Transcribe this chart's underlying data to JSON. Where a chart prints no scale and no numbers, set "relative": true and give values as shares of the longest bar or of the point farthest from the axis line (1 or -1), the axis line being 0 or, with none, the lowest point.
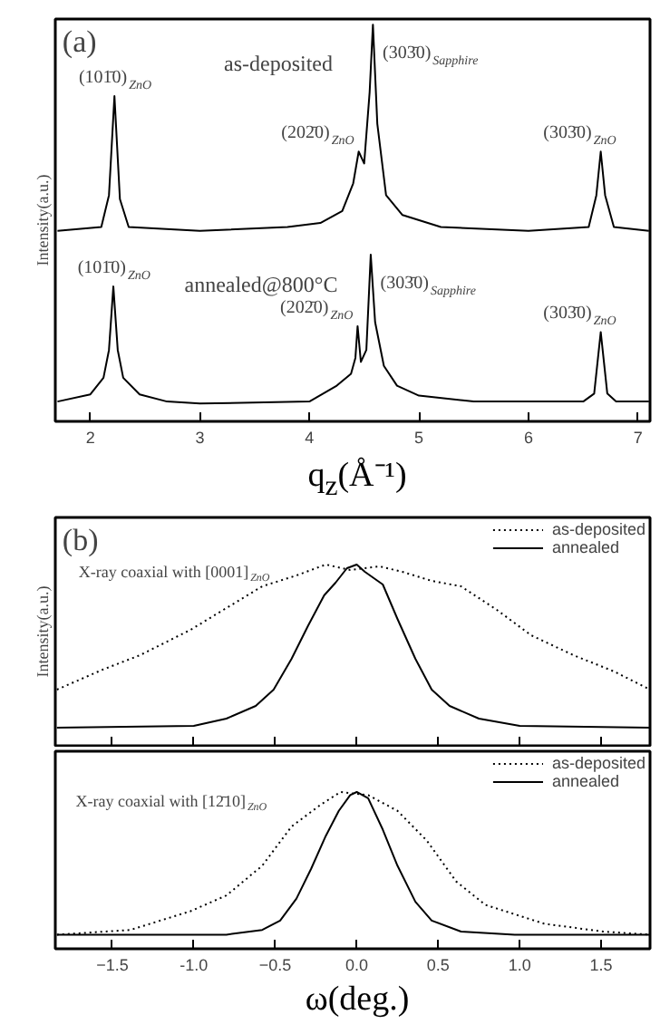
{
  "chart_data": [
    {
      "type": "line",
      "title": "(a)",
      "xlabel": "q$_{z}$(Å⁻¹)",
      "ylabel": "Intensity(a.u.)",
      "relative": true,
      "xlim": [
        1.68,
        7.11
      ],
      "xticks": [
        2,
        3,
        4,
        5,
        6,
        7
      ],
      "grid": false,
      "legend": false,
      "marker": "none",
      "line_style": "solid",
      "series": [
        {
          "name": "as-deposited",
          "color": "#000000",
          "x": [
            1.7,
            2.1,
            2.17,
            2.22,
            2.27,
            2.35,
            3.0,
            3.8,
            4.1,
            4.3,
            4.4,
            4.45,
            4.5,
            4.55,
            4.58,
            4.62,
            4.7,
            4.85,
            5.2,
            6.0,
            6.55,
            6.62,
            6.66,
            6.7,
            6.78,
            7.1
          ],
          "values": [
            0.48,
            0.49,
            0.57,
            0.82,
            0.56,
            0.49,
            0.48,
            0.49,
            0.5,
            0.53,
            0.6,
            0.68,
            0.65,
            0.83,
            1.0,
            0.75,
            0.57,
            0.52,
            0.49,
            0.48,
            0.49,
            0.57,
            0.68,
            0.57,
            0.49,
            0.48
          ]
        },
        {
          "name": "annealed@800°C",
          "color": "#000000",
          "x": [
            1.7,
            2.0,
            2.12,
            2.17,
            2.21,
            2.25,
            2.3,
            2.45,
            2.7,
            3.0,
            4.0,
            4.25,
            4.38,
            4.42,
            4.44,
            4.47,
            4.52,
            4.56,
            4.6,
            4.68,
            4.8,
            5.0,
            5.5,
            6.5,
            6.6,
            6.66,
            6.72,
            6.8,
            7.1
          ],
          "values": [
            0.05,
            0.068,
            0.11,
            0.18,
            0.34,
            0.18,
            0.11,
            0.068,
            0.05,
            0.045,
            0.05,
            0.09,
            0.12,
            0.16,
            0.24,
            0.15,
            0.18,
            0.42,
            0.25,
            0.14,
            0.09,
            0.065,
            0.05,
            0.05,
            0.07,
            0.225,
            0.07,
            0.05,
            0.05
          ]
        }
      ],
      "annotations": [
        {
          "text": "(101̄0)$_{ZnO}$",
          "x": 2.22,
          "y": 0.82
        },
        {
          "text": "(202̄0)$_{ZnO}$",
          "x": 4.45,
          "y": 0.68
        },
        {
          "text": "(303̄0)$_{Sapphire}$",
          "x": 4.58,
          "y": 1.0
        },
        {
          "text": "(303̄0)$_{ZnO}$",
          "x": 6.66,
          "y": 0.68
        },
        {
          "text": "(101̄0)$_{ZnO}$",
          "x": 2.21,
          "y": 0.34
        },
        {
          "text": "(202̄0)$_{ZnO}$",
          "x": 4.44,
          "y": 0.24
        },
        {
          "text": "(303̄0)$_{Sapphire}$",
          "x": 4.56,
          "y": 0.42
        },
        {
          "text": "(303̄0)$_{ZnO}$",
          "x": 6.66,
          "y": 0.225
        }
      ]
    },
    {
      "type": "line",
      "title": "(b)",
      "ylabel": "Intensity(a.u.)",
      "relative": true,
      "xlim": [
        -1.85,
        1.8
      ],
      "xticks": [
        -1.5,
        -1,
        -0.5,
        0,
        0.5,
        1,
        1.5
      ],
      "tick_labels": false,
      "grid": false,
      "legend": "top right",
      "marker": "none",
      "series": [
        {
          "name": "as-deposited",
          "color": "#000000",
          "line_style": "dotted",
          "x": [
            -1.84,
            -1.56,
            -1.33,
            -1.02,
            -0.8,
            -0.58,
            -0.37,
            -0.19,
            -0.04,
            0.14,
            0.28,
            0.46,
            0.64,
            0.86,
            1.07,
            1.33,
            1.58,
            1.8
          ],
          "values": [
            0.31,
            0.42,
            0.5,
            0.64,
            0.76,
            0.88,
            0.94,
            1.0,
            0.97,
            0.99,
            0.96,
            0.91,
            0.88,
            0.75,
            0.61,
            0.5,
            0.41,
            0.31
          ]
        },
        {
          "name": "annealed",
          "color": "#000000",
          "line_style": "solid",
          "x": [
            -1.84,
            -1.0,
            -0.8,
            -0.62,
            -0.51,
            -0.4,
            -0.3,
            -0.2,
            -0.13,
            -0.06,
            0.0,
            0.05,
            0.16,
            0.25,
            0.36,
            0.46,
            0.57,
            0.75,
            1.0,
            1.8
          ],
          "values": [
            0.1,
            0.11,
            0.15,
            0.22,
            0.31,
            0.48,
            0.66,
            0.83,
            0.9,
            0.98,
            1.0,
            0.96,
            0.89,
            0.7,
            0.48,
            0.31,
            0.22,
            0.15,
            0.11,
            0.1
          ]
        }
      ],
      "annotations": [
        "X-ray coaxial with [0001]$_{ZnO}$"
      ]
    },
    {
      "type": "line",
      "xlabel": "ω(deg.)",
      "relative": true,
      "xlim": [
        -1.85,
        1.8
      ],
      "xticks": [
        -1.5,
        {
          "value": -1,
          "label": "-1.0"
        },
        -0.5,
        {
          "value": 0,
          "label": "0.0"
        },
        0.5,
        {
          "value": 1,
          "label": "1.0"
        },
        1.5
      ],
      "tick_labels": "x",
      "grid": false,
      "legend": "top right",
      "marker": "none",
      "series": [
        {
          "name": "as-deposited",
          "color": "#000000",
          "line_style": "dotted",
          "x": [
            -1.84,
            -1.39,
            -1.02,
            -0.8,
            -0.58,
            -0.4,
            -0.22,
            -0.1,
            0.07,
            0.25,
            0.43,
            0.61,
            0.79,
            1.15,
            1.51,
            1.8
          ],
          "values": [
            0.09,
            0.12,
            0.24,
            0.34,
            0.53,
            0.78,
            0.92,
            1.0,
            0.98,
            0.88,
            0.69,
            0.43,
            0.28,
            0.16,
            0.11,
            0.09
          ]
        },
        {
          "name": "annealed",
          "color": "#000000",
          "line_style": "solid",
          "x": [
            -1.84,
            -0.8,
            -0.58,
            -0.47,
            -0.37,
            -0.28,
            -0.19,
            -0.11,
            -0.04,
            0.0,
            0.07,
            0.16,
            0.25,
            0.36,
            0.46,
            0.64,
            0.97,
            1.8
          ],
          "values": [
            0.09,
            0.09,
            0.12,
            0.18,
            0.32,
            0.51,
            0.72,
            0.88,
            0.98,
            1.0,
            0.96,
            0.76,
            0.53,
            0.3,
            0.18,
            0.11,
            0.09,
            0.09
          ]
        }
      ],
      "annotations": [
        "X-ray coaxial with [12̄10]$_{ZnO}$"
      ]
    }
  ]
}
